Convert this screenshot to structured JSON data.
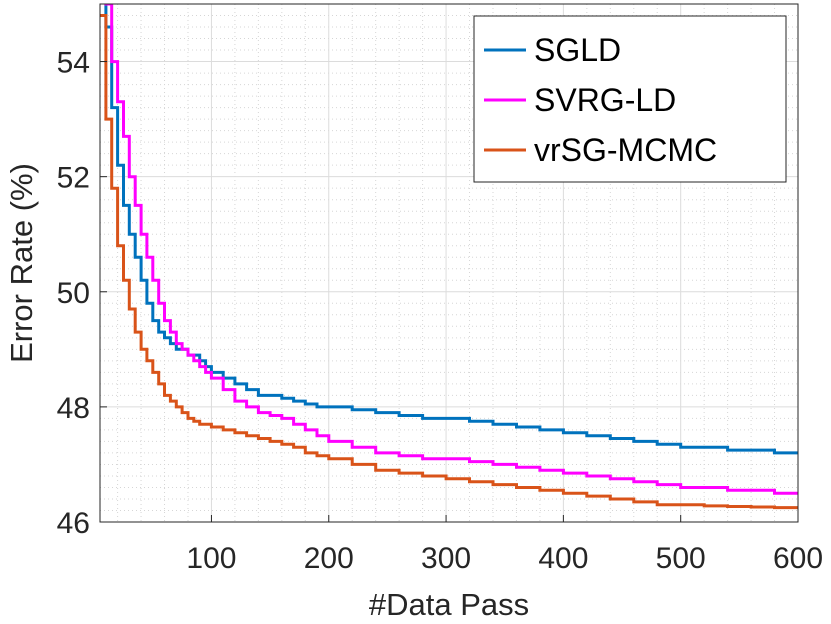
{
  "chart_data": {
    "type": "line",
    "title": "",
    "xlabel": "#Data Pass",
    "ylabel": "Error Rate (%)",
    "xlim": [
      5,
      600
    ],
    "ylim": [
      46,
      55
    ],
    "xticks": [
      100,
      200,
      300,
      400,
      500,
      600
    ],
    "yticks": [
      46,
      48,
      50,
      52,
      54
    ],
    "grid": true,
    "minor_grid": true,
    "legend_position": "top-right",
    "series": [
      {
        "name": "SGLD",
        "color": "#0072BD",
        "x": [
          5,
          10,
          15,
          20,
          25,
          30,
          35,
          40,
          45,
          50,
          55,
          60,
          65,
          70,
          75,
          80,
          85,
          90,
          95,
          100,
          110,
          120,
          130,
          140,
          150,
          160,
          170,
          180,
          190,
          200,
          220,
          240,
          260,
          280,
          300,
          320,
          340,
          360,
          380,
          400,
          420,
          440,
          460,
          480,
          500,
          520,
          540,
          560,
          580,
          600
        ],
        "y": [
          55.2,
          54.6,
          53.2,
          52.2,
          51.5,
          51.0,
          50.6,
          50.2,
          49.8,
          49.5,
          49.3,
          49.2,
          49.1,
          49.0,
          49.0,
          48.9,
          48.9,
          48.8,
          48.7,
          48.6,
          48.5,
          48.4,
          48.3,
          48.2,
          48.2,
          48.15,
          48.1,
          48.05,
          48.0,
          48.0,
          47.95,
          47.9,
          47.85,
          47.8,
          47.8,
          47.75,
          47.7,
          47.65,
          47.6,
          47.55,
          47.5,
          47.45,
          47.4,
          47.35,
          47.3,
          47.3,
          47.25,
          47.25,
          47.2,
          47.2
        ]
      },
      {
        "name": "SVRG-LD",
        "color": "#FF00FF",
        "x": [
          5,
          10,
          15,
          20,
          25,
          30,
          35,
          40,
          45,
          50,
          55,
          60,
          65,
          70,
          75,
          80,
          85,
          90,
          95,
          100,
          110,
          120,
          130,
          140,
          150,
          160,
          170,
          180,
          190,
          200,
          220,
          240,
          260,
          280,
          300,
          320,
          340,
          360,
          380,
          400,
          420,
          440,
          460,
          480,
          500,
          520,
          540,
          560,
          580,
          600
        ],
        "y": [
          55.4,
          55.0,
          54.0,
          53.3,
          52.7,
          52.0,
          51.5,
          51.0,
          50.6,
          50.2,
          49.8,
          49.5,
          49.3,
          49.1,
          49.0,
          48.9,
          48.8,
          48.7,
          48.6,
          48.5,
          48.3,
          48.1,
          48.0,
          47.9,
          47.85,
          47.8,
          47.7,
          47.6,
          47.5,
          47.4,
          47.3,
          47.2,
          47.15,
          47.1,
          47.1,
          47.05,
          47.0,
          46.95,
          46.9,
          46.85,
          46.8,
          46.75,
          46.7,
          46.65,
          46.6,
          46.6,
          46.55,
          46.55,
          46.5,
          46.5
        ]
      },
      {
        "name": "vrSG-MCMC",
        "color": "#D95319",
        "x": [
          5,
          10,
          15,
          20,
          25,
          30,
          35,
          40,
          45,
          50,
          55,
          60,
          65,
          70,
          75,
          80,
          85,
          90,
          95,
          100,
          110,
          120,
          130,
          140,
          150,
          160,
          170,
          180,
          190,
          200,
          220,
          240,
          260,
          280,
          300,
          320,
          340,
          360,
          380,
          400,
          420,
          440,
          460,
          480,
          500,
          520,
          540,
          560,
          580,
          600
        ],
        "y": [
          54.8,
          53.0,
          51.8,
          50.8,
          50.2,
          49.7,
          49.3,
          49.0,
          48.8,
          48.6,
          48.4,
          48.2,
          48.1,
          48.0,
          47.9,
          47.8,
          47.75,
          47.7,
          47.7,
          47.65,
          47.6,
          47.55,
          47.5,
          47.45,
          47.4,
          47.35,
          47.3,
          47.2,
          47.15,
          47.1,
          47.0,
          46.9,
          46.85,
          46.8,
          46.75,
          46.7,
          46.65,
          46.6,
          46.55,
          46.5,
          46.45,
          46.4,
          46.35,
          46.3,
          46.3,
          46.28,
          46.27,
          46.26,
          46.25,
          46.25
        ]
      }
    ]
  }
}
